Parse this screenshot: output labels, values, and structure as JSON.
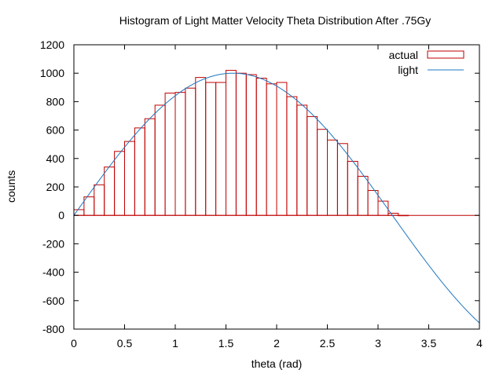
{
  "chart_data": {
    "type": "bar",
    "title": "Histogram of Light Matter Velocity Theta Distribution After .75Gy",
    "xlabel": "theta (rad)",
    "ylabel": "counts",
    "xlim": [
      0,
      4
    ],
    "ylim": [
      -800,
      1200
    ],
    "xticks": [
      "0",
      "0.5",
      "1",
      "1.5",
      "2",
      "2.5",
      "3",
      "3.5",
      "4"
    ],
    "yticks": [
      "-800",
      "-600",
      "-400",
      "-200",
      "0",
      "200",
      "400",
      "600",
      "800",
      "1000",
      "1200"
    ],
    "grid": false,
    "legend_position": "top-right",
    "legend": [
      "actual",
      "light"
    ],
    "bin_width": 0.1,
    "series": [
      {
        "name": "actual",
        "type": "histogram",
        "color": "#c00000",
        "x": [
          0.05,
          0.15,
          0.25,
          0.35,
          0.45,
          0.55,
          0.65,
          0.75,
          0.85,
          0.95,
          1.05,
          1.15,
          1.25,
          1.35,
          1.45,
          1.55,
          1.65,
          1.75,
          1.85,
          1.95,
          2.05,
          2.15,
          2.25,
          2.35,
          2.45,
          2.55,
          2.65,
          2.75,
          2.85,
          2.95,
          3.05,
          3.15,
          3.25
        ],
        "values": [
          40,
          130,
          215,
          340,
          450,
          520,
          615,
          680,
          775,
          860,
          865,
          895,
          970,
          935,
          935,
          1020,
          1000,
          990,
          965,
          925,
          935,
          835,
          775,
          695,
          605,
          530,
          505,
          380,
          275,
          175,
          100,
          15,
          0
        ]
      },
      {
        "name": "light",
        "type": "line",
        "color": "#1f77c0",
        "function": "1000*sin(theta)"
      }
    ]
  }
}
